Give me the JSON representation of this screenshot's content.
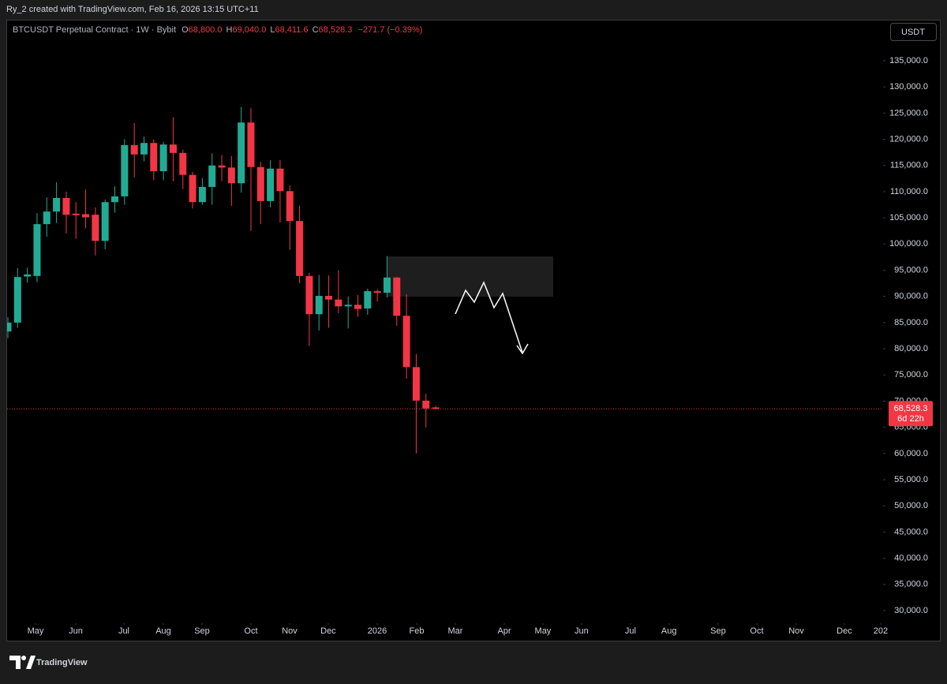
{
  "header": {
    "watermark": "Ry_2 created with TradingView.com, Feb 16, 2026 13:15 UTC+11"
  },
  "brand": "TradingView",
  "chart_data": {
    "type": "candlestick",
    "title": "BTCUSDT Perpetual Contract · 1W · Bybit",
    "legend": {
      "o_key": "O",
      "o": "68,800.0",
      "h_key": "H",
      "h": "69,040.0",
      "l_key": "L",
      "l": "68,411.6",
      "c_key": "C",
      "c": "68,528.3",
      "change": "−271.7 (−0.39%)"
    },
    "currency": "USDT",
    "up_color": "#22ab94",
    "down_color": "#f23645",
    "x": [
      0,
      1,
      2,
      3,
      4,
      5,
      6,
      7,
      8,
      9,
      10,
      11,
      12,
      13,
      14,
      15,
      16,
      17,
      18,
      19,
      20,
      21,
      22,
      23,
      24,
      25,
      26,
      27,
      28,
      29,
      30,
      31,
      32,
      33,
      34,
      35,
      36,
      37,
      38,
      39,
      40,
      41,
      42,
      43,
      44
    ],
    "open": [
      83300,
      85000,
      93800,
      93900,
      103800,
      106200,
      108800,
      105800,
      105700,
      105600,
      100600,
      108000,
      109100,
      118900,
      117100,
      119300,
      113900,
      119000,
      117400,
      113200,
      108000,
      110900,
      115000,
      114600,
      111600,
      123200,
      114700,
      108200,
      114400,
      110100,
      104400,
      93900,
      86600,
      90100,
      89400,
      88100,
      88400,
      87700,
      91000,
      90700,
      93600,
      86300,
      76500,
      70100,
      68800
    ],
    "high": [
      86000,
      95400,
      95500,
      105900,
      108900,
      111800,
      110000,
      108000,
      110400,
      107000,
      108500,
      111000,
      120000,
      123100,
      120500,
      120000,
      119500,
      124200,
      118000,
      113800,
      112600,
      117300,
      117000,
      116800,
      126200,
      126000,
      115700,
      116000,
      116000,
      111200,
      107300,
      94500,
      94100,
      94000,
      95000,
      90000,
      90300,
      91500,
      91400,
      97700,
      93700,
      90400,
      79000,
      71400,
      69040
    ],
    "low": [
      82000,
      84000,
      92600,
      92700,
      101400,
      104000,
      102000,
      101000,
      103000,
      97800,
      99000,
      106000,
      107500,
      112700,
      115800,
      112200,
      112200,
      112000,
      110500,
      106800,
      107500,
      107500,
      112000,
      107300,
      109800,
      102500,
      103800,
      107000,
      104100,
      98900,
      92500,
      80600,
      83500,
      84000,
      86800,
      83900,
      86100,
      86500,
      89000,
      89800,
      84400,
      74300,
      60000,
      65000,
      68411.6
    ],
    "close": [
      85000,
      93700,
      94200,
      103800,
      106200,
      108800,
      105600,
      105500,
      105100,
      100600,
      108000,
      109100,
      118900,
      117100,
      119300,
      113900,
      119000,
      117400,
      113200,
      108000,
      110900,
      115000,
      114600,
      111600,
      123200,
      114700,
      108200,
      114400,
      110100,
      104400,
      93900,
      86600,
      90100,
      89400,
      88100,
      88400,
      87600,
      91000,
      90700,
      93600,
      86300,
      76500,
      70100,
      68600,
      68528.3
    ],
    "xlim": [
      0,
      89.94
    ],
    "xticks": [
      {
        "value": 2.84,
        "label": "May"
      },
      {
        "value": 6.98,
        "label": "Jun"
      },
      {
        "value": 11.93,
        "label": "Jul"
      },
      {
        "value": 15.99,
        "label": "Aug"
      },
      {
        "value": 19.97,
        "label": "Sep"
      },
      {
        "value": 25.0,
        "label": "Oct"
      },
      {
        "value": 28.98,
        "label": "Nov"
      },
      {
        "value": 32.95,
        "label": "Dec"
      },
      {
        "value": 37.99,
        "label": "2026"
      },
      {
        "value": 42.05,
        "label": "Feb"
      },
      {
        "value": 46.02,
        "label": "Mar"
      },
      {
        "value": 51.06,
        "label": "Apr"
      },
      {
        "value": 55.03,
        "label": "May"
      },
      {
        "value": 59.0,
        "label": "Jun"
      },
      {
        "value": 64.04,
        "label": "Jul"
      },
      {
        "value": 68.0,
        "label": "Aug"
      },
      {
        "value": 73.05,
        "label": "Sep"
      },
      {
        "value": 77.03,
        "label": "Oct"
      },
      {
        "value": 81.09,
        "label": "Nov"
      },
      {
        "value": 86.04,
        "label": "Dec"
      },
      {
        "value": 89.77,
        "label": "202"
      }
    ],
    "ylim": [
      27590,
      142830
    ],
    "yticks": [
      {
        "value": 30000,
        "label": "30,000.0"
      },
      {
        "value": 35000,
        "label": "35,000.0"
      },
      {
        "value": 40000,
        "label": "40,000.0"
      },
      {
        "value": 45000,
        "label": "45,000.0"
      },
      {
        "value": 50000,
        "label": "50,000.0"
      },
      {
        "value": 55000,
        "label": "55,000.0"
      },
      {
        "value": 60000,
        "label": "60,000.0"
      },
      {
        "value": 65000,
        "label": "65,000.0"
      },
      {
        "value": 70000,
        "label": "70,000.0"
      },
      {
        "value": 75000,
        "label": "75,000.0"
      },
      {
        "value": 80000,
        "label": "80,000.0"
      },
      {
        "value": 85000,
        "label": "85,000.0"
      },
      {
        "value": 90000,
        "label": "90,000.0"
      },
      {
        "value": 95000,
        "label": "95,000.0"
      },
      {
        "value": 100000,
        "label": "100,000.0"
      },
      {
        "value": 105000,
        "label": "105,000.0"
      },
      {
        "value": 110000,
        "label": "110,000.0"
      },
      {
        "value": 115000,
        "label": "115,000.0"
      },
      {
        "value": 120000,
        "label": "120,000.0"
      },
      {
        "value": 125000,
        "label": "125,000.0"
      },
      {
        "value": 130000,
        "label": "130,000.0"
      },
      {
        "value": 135000,
        "label": "135,000.0"
      }
    ],
    "price_line": {
      "value": 68528.3,
      "label": "68,528.3",
      "countdown": "6d 22h",
      "color": "#f23645"
    }
  }
}
